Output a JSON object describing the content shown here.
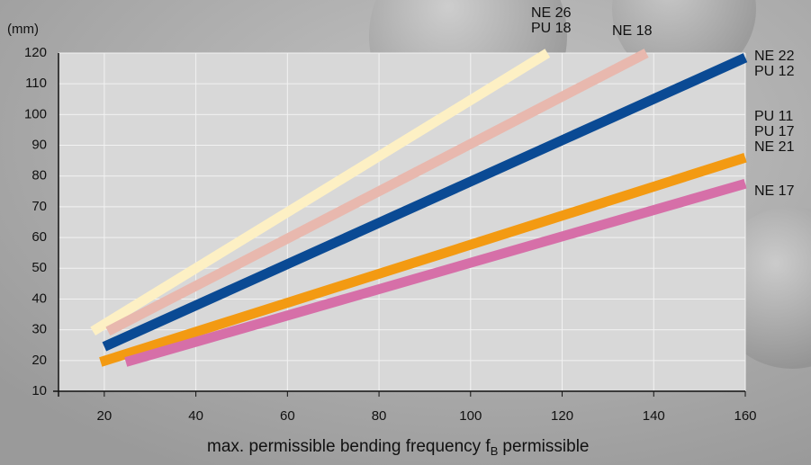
{
  "chart_data": {
    "type": "line",
    "y_label": "(mm)",
    "x_label": "max. permissible bending frequency f",
    "x_label_subscript": "B",
    "x_label_suffix": "permissible",
    "xlim": [
      10,
      160
    ],
    "xticks": [
      20,
      40,
      60,
      80,
      100,
      120,
      140,
      160
    ],
    "ylim": [
      10,
      120
    ],
    "yticks": [
      10,
      20,
      30,
      40,
      50,
      60,
      70,
      80,
      90,
      100,
      110,
      120
    ],
    "grid": true,
    "series": [
      {
        "labels": [
          "NE 26",
          "PU 18"
        ],
        "color": "#fdf0c4",
        "x": [
          17.5,
          116.8
        ],
        "values": [
          29.5,
          120
        ]
      },
      {
        "labels": [
          "NE 18"
        ],
        "color": "#e8b8ae",
        "x": [
          20.8,
          138.4
        ],
        "values": [
          29.5,
          120
        ]
      },
      {
        "labels": [
          "NE 22",
          "PU 12"
        ],
        "color": "#0a4a94",
        "x": [
          20,
          160
        ],
        "values": [
          24.5,
          118.5
        ]
      },
      {
        "labels": [
          "PU 11",
          "PU 17",
          "NE 21"
        ],
        "color": "#f39a12",
        "x": [
          19.2,
          160
        ],
        "values": [
          19.5,
          86
        ]
      },
      {
        "labels": [
          "NE 17"
        ],
        "color": "#d66fa8",
        "x": [
          24.7,
          160
        ],
        "values": [
          19.5,
          77.5
        ]
      }
    ]
  }
}
